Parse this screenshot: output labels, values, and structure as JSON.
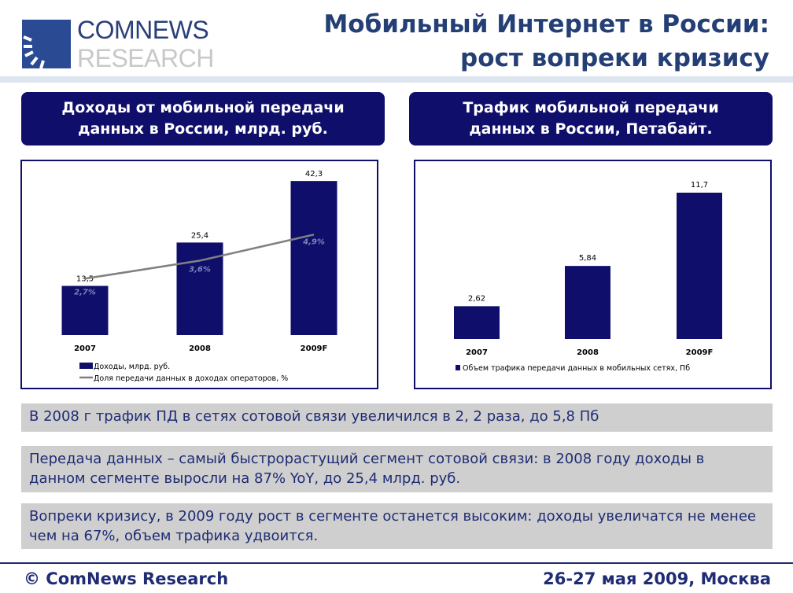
{
  "logo": {
    "line1": "COMNEWS",
    "line2": "RESEARCH"
  },
  "title": {
    "line1": "Мобильный Интернет в России:",
    "line2": "рост вопреки кризису"
  },
  "colors": {
    "navy": "#0f0f6b",
    "title_blue": "#243f75",
    "note_bg": "#cfcfcf",
    "line_gray": "#808080"
  },
  "panels": [
    {
      "header_line1": "Доходы от мобильной передачи",
      "header_line2": "данных в России, млрд. руб."
    },
    {
      "header_line1": "Трафик мобильной передачи",
      "header_line2": "данных в России, Петабайт."
    }
  ],
  "chart_data": [
    {
      "type": "bar",
      "categories": [
        "2007",
        "2008",
        "2009F"
      ],
      "series": [
        {
          "name": "Доходы, млрд. руб.",
          "type": "bar",
          "values": [
            13.5,
            25.4,
            42.3
          ],
          "labels": [
            "13,5",
            "25,4",
            "42,3"
          ]
        },
        {
          "name": "Доля передачи данных в доходах операторов, %",
          "type": "line",
          "values": [
            2.7,
            3.6,
            4.9
          ],
          "labels": [
            "2,7%",
            "3,6%",
            "4,9%"
          ]
        }
      ],
      "grid": false,
      "legend": "bottom-left"
    },
    {
      "type": "bar",
      "categories": [
        "2007",
        "2008",
        "2009F"
      ],
      "series": [
        {
          "name": "Объем трафика передачи данных в мобильных сетях, Пб",
          "values": [
            2.62,
            5.84,
            11.7
          ],
          "labels": [
            "2,62",
            "5,84",
            "11,7"
          ]
        }
      ],
      "grid": false,
      "legend": "bottom-center"
    }
  ],
  "notes": [
    "В 2008 г трафик ПД в сетях сотовой связи увеличился в 2, 2 раза, до 5,8 Пб",
    "Передача данных – самый быстрорастущий сегмент сотовой связи: в 2008 году доходы в данном сегменте выросли на 87% YoY, до 25,4 млрд. руб.",
    "Вопреки кризису, в 2009 году рост в сегменте останется высоким: доходы увеличатся не менее чем на 67%, объем трафика удвоится."
  ],
  "footer": {
    "copyright": "© ComNews Research",
    "date": "26-27 мая 2009, Москва"
  }
}
